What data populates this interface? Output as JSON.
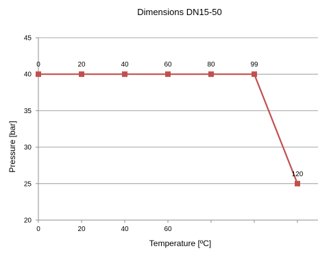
{
  "chart_data": {
    "type": "line",
    "title": "Dimensions DN15-50",
    "xlabel": "Temperature [ºC]",
    "ylabel": "Pressure [bar]",
    "ylim": [
      20,
      45
    ],
    "yticks": [
      20,
      25,
      30,
      35,
      40,
      45
    ],
    "grid": true,
    "legend": "none",
    "colors": {
      "series": "#c0504d",
      "grid": "#8c8c8c",
      "axis": "#8c8c8c"
    },
    "categories": [
      "0",
      "20",
      "40",
      "60",
      "80",
      "99",
      "120"
    ],
    "x_tick_labels": [
      "0",
      "20",
      "40",
      "60",
      "",
      "",
      ""
    ],
    "series": [
      {
        "values": [
          40,
          40,
          40,
          40,
          40,
          40,
          25
        ],
        "data_labels": [
          "0",
          "20",
          "40",
          "60",
          "80",
          "99",
          "120"
        ]
      }
    ]
  }
}
